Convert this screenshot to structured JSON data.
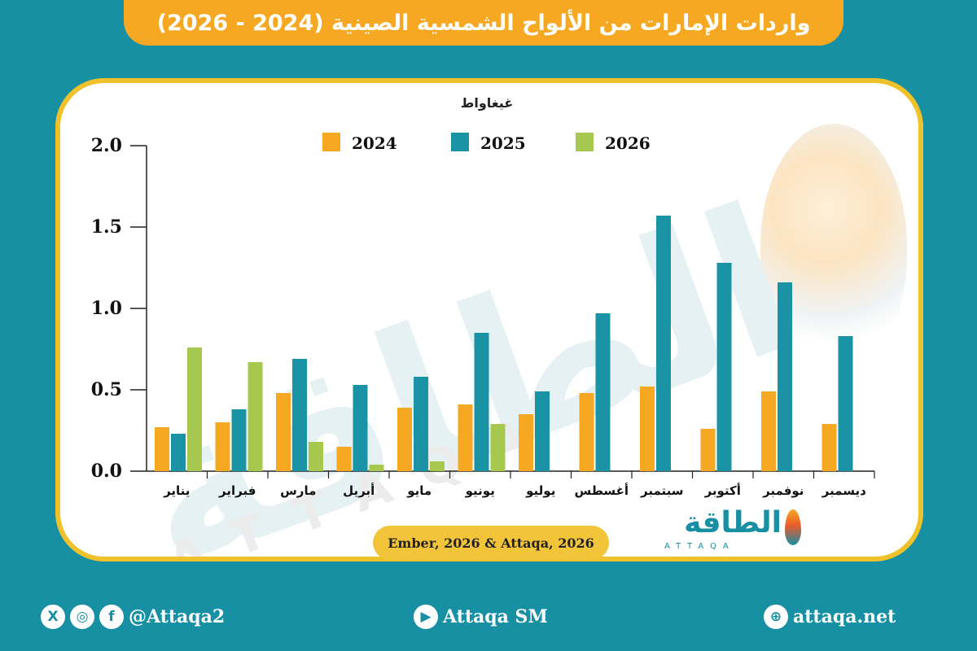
{
  "title": "واردات الإمارات من الألواح الشمسية الصينية (2024 - 2026)",
  "source": "Ember, 2026 & Attaqa, 2026",
  "logo": {
    "arabic": "الطاقة",
    "latin": "ATTAQA"
  },
  "watermark": {
    "arabic": "الطاقة",
    "latin": "ATTAQA"
  },
  "footer": {
    "social_handle": "@Attaqa2",
    "youtube": "Attaqa SM",
    "website": "attaqa.net",
    "icons": [
      "x-icon",
      "instagram-icon",
      "facebook-icon",
      "youtube-icon",
      "globe-icon"
    ]
  },
  "colors": {
    "2024": "#f7a822",
    "2025": "#1a93a5",
    "2026": "#a6c84e",
    "background": "#1790a3",
    "border": "#efc12a"
  },
  "chart_data": {
    "type": "bar",
    "ylabel": "غيغاواط",
    "ylim": [
      0,
      2.0
    ],
    "yticks": [
      "0.0",
      "0.5",
      "1.0",
      "1.5",
      "2.0"
    ],
    "legend_position": "top",
    "grid": false,
    "categories": [
      "يناير",
      "فبراير",
      "مارس",
      "أبريل",
      "مايو",
      "يونيو",
      "يوليو",
      "أغسطس",
      "سبتمبر",
      "أكتوبر",
      "نوفمبر",
      "ديسمبر"
    ],
    "series": [
      {
        "name": "2024",
        "values": [
          0.27,
          0.3,
          0.48,
          0.15,
          0.39,
          0.41,
          0.35,
          0.48,
          0.52,
          0.26,
          0.49,
          0.29
        ]
      },
      {
        "name": "2025",
        "values": [
          0.23,
          0.38,
          0.69,
          0.53,
          0.58,
          0.85,
          0.49,
          0.97,
          1.57,
          1.28,
          1.16,
          0.83
        ]
      },
      {
        "name": "2026",
        "values": [
          0.76,
          0.67,
          0.18,
          0.04,
          0.06,
          0.29,
          null,
          null,
          null,
          null,
          null,
          null
        ]
      }
    ]
  }
}
